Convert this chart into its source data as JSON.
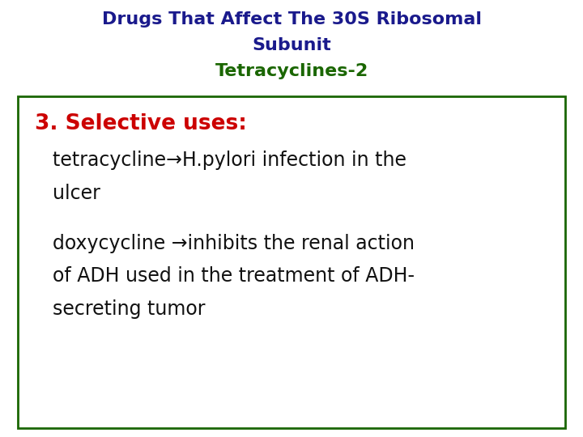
{
  "title_line1": "Drugs That Affect The 30S Ribosomal",
  "title_line2": "Subunit",
  "title_line3": "Tetracyclines-2",
  "title_color1": "#1a1a8c",
  "title_color2": "#1a1a8c",
  "title_color3": "#1a6600",
  "background_color": "#ffffff",
  "box_edge_color": "#1a6600",
  "heading_text": "3. Selective uses:",
  "heading_color": "#cc0000",
  "body_lines": [
    "tetracycline→H.pylori infection in the",
    "ulcer",
    "doxycycline →inhibits the renal action",
    "of ADH used in the treatment of ADH-",
    "secreting tumor"
  ],
  "body_color": "#111111",
  "title_fontsize": 16,
  "heading_fontsize": 19,
  "body_fontsize": 17,
  "fig_width": 7.2,
  "fig_height": 5.4,
  "dpi": 100
}
